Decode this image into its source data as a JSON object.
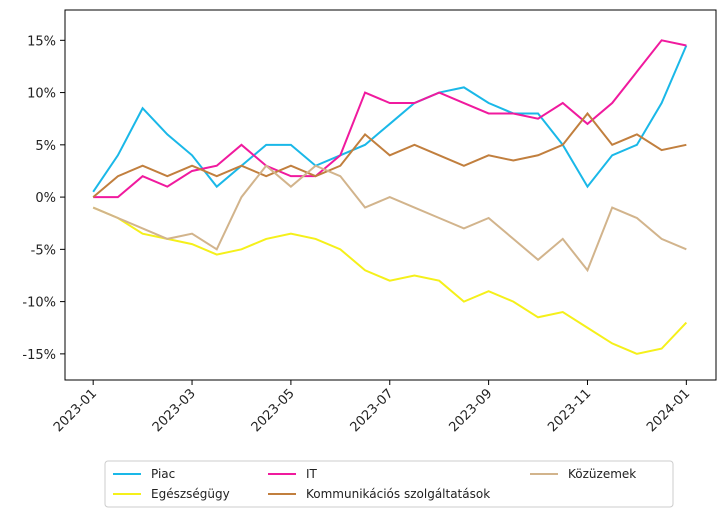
{
  "chart_data": {
    "type": "line",
    "x": [
      0,
      0.5,
      1,
      1.5,
      2,
      2.5,
      3,
      3.5,
      4,
      4.5,
      5,
      5.5,
      6,
      6.5,
      7,
      7.5,
      8,
      8.5,
      9,
      9.5,
      10,
      10.5,
      11,
      11.5,
      12
    ],
    "xlim": [
      -0.57,
      12.6
    ],
    "xticks": [
      {
        "value": 0,
        "label": "2023-01"
      },
      {
        "value": 2,
        "label": "2023-03"
      },
      {
        "value": 4,
        "label": "2023-05"
      },
      {
        "value": 6,
        "label": "2023-07"
      },
      {
        "value": 8,
        "label": "2023-09"
      },
      {
        "value": 10,
        "label": "2023-11"
      },
      {
        "value": 12,
        "label": "2024-01"
      }
    ],
    "ylim": [
      -17.5,
      17.9
    ],
    "yticks": [
      {
        "value": -15,
        "label": "-15%"
      },
      {
        "value": -10,
        "label": "-10%"
      },
      {
        "value": -5,
        "label": "-5%"
      },
      {
        "value": 0,
        "label": "0%"
      },
      {
        "value": 5,
        "label": "5%"
      },
      {
        "value": 10,
        "label": "10%"
      },
      {
        "value": 15,
        "label": "15%"
      }
    ],
    "series": [
      {
        "name": "Piac",
        "color": "#1ab8e8",
        "values": [
          0.5,
          4,
          8.5,
          6,
          4,
          1,
          3,
          5,
          5,
          3,
          4,
          5,
          7,
          9,
          10,
          10.5,
          9,
          8,
          8,
          5,
          1,
          4,
          5,
          9,
          14.5
        ]
      },
      {
        "name": "Egészségügy",
        "color": "#f5f01a",
        "values": [
          -1,
          -2,
          -3.5,
          -4,
          -4.5,
          -5.5,
          -5,
          -4,
          -3.5,
          -4,
          -5,
          -7,
          -8,
          -7.5,
          -8,
          -10,
          -9,
          -10,
          -11.5,
          -11,
          -12.5,
          -14,
          -15,
          -14.5,
          -12
        ]
      },
      {
        "name": "IT",
        "color": "#f01a9e",
        "values": [
          0,
          0,
          2,
          1,
          2.5,
          3,
          5,
          3,
          2,
          2,
          4,
          10,
          9,
          9,
          10,
          9,
          8,
          8,
          7.5,
          9,
          7,
          9,
          12,
          15,
          14.5
        ]
      },
      {
        "name": "Kommunikációs szolgáltatások",
        "color": "#c17f3e",
        "values": [
          0,
          2,
          3,
          2,
          3,
          2,
          3,
          2,
          3,
          2,
          3,
          6,
          4,
          5,
          4,
          3,
          4,
          3.5,
          4,
          5,
          8,
          5,
          6,
          4.5,
          5
        ]
      },
      {
        "name": "Közüzemek",
        "color": "#d2b48c",
        "values": [
          -1,
          -2,
          -3,
          -4,
          -3.5,
          -5,
          0,
          3,
          1,
          3,
          2,
          -1,
          0,
          -1,
          -2,
          -3,
          -2,
          -4,
          -6,
          -4,
          -7,
          -1,
          -2,
          -4,
          -5
        ]
      }
    ]
  }
}
